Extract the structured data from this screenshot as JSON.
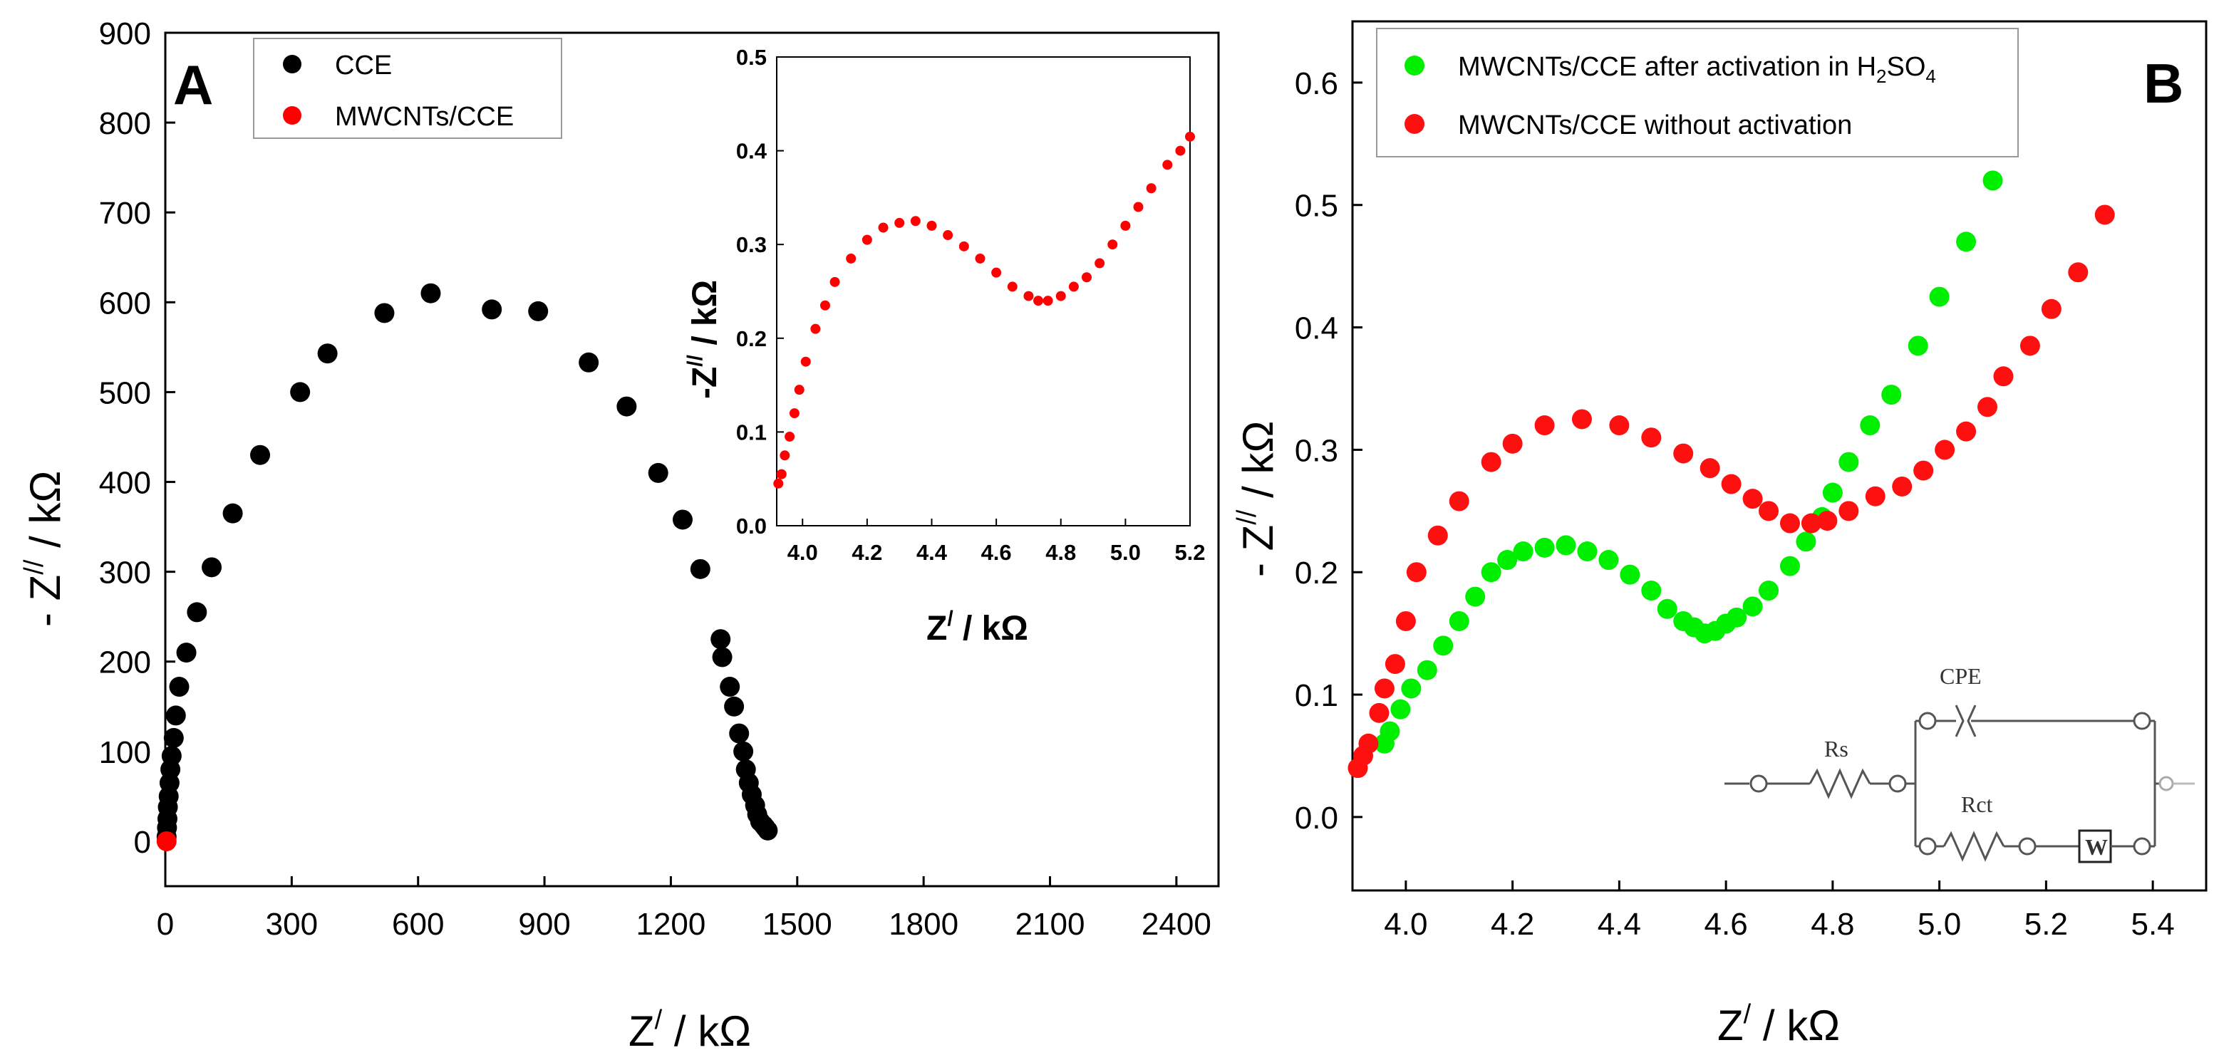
{
  "chart_data": [
    {
      "panel": "A",
      "type": "scatter",
      "xlabel": "Z/ / kΩ",
      "xlabel_base": "Z",
      "xlabel_sup": "/",
      "xlabel_rest": " / kΩ",
      "ylabel_prefix": "- Z",
      "ylabel_sup": "//",
      "ylabel_rest": " / kΩ",
      "ylabel": "- Z// / kΩ",
      "xlim": [
        0,
        2500
      ],
      "ylim": [
        -50,
        900
      ],
      "xticks": [
        0,
        300,
        600,
        900,
        1200,
        1500,
        1800,
        2100,
        2400
      ],
      "yticks": [
        0,
        100,
        200,
        300,
        400,
        500,
        600,
        700,
        800,
        900
      ],
      "legend": [
        "CCE",
        "MWCNTs/CCE"
      ],
      "legend_position": "top-center",
      "series": [
        {
          "name": "CCE",
          "color": "#000000",
          "points": [
            [
              3,
              5
            ],
            [
              4,
              15
            ],
            [
              5,
              25
            ],
            [
              6,
              38
            ],
            [
              8,
              50
            ],
            [
              10,
              65
            ],
            [
              12,
              80
            ],
            [
              15,
              95
            ],
            [
              20,
              115
            ],
            [
              25,
              140
            ],
            [
              33,
              172
            ],
            [
              50,
              210
            ],
            [
              75,
              255
            ],
            [
              110,
              305
            ],
            [
              160,
              365
            ],
            [
              225,
              430
            ],
            [
              320,
              500
            ],
            [
              385,
              543
            ],
            [
              520,
              588
            ],
            [
              630,
              610
            ],
            [
              775,
              592
            ],
            [
              885,
              590
            ],
            [
              1005,
              533
            ],
            [
              1095,
              484
            ],
            [
              1170,
              410
            ],
            [
              1228,
              358
            ],
            [
              1270,
              303
            ],
            [
              1318,
              225
            ],
            [
              1322,
              205
            ],
            [
              1340,
              172
            ],
            [
              1350,
              150
            ],
            [
              1362,
              120
            ],
            [
              1372,
              100
            ],
            [
              1378,
              80
            ],
            [
              1385,
              65
            ],
            [
              1392,
              52
            ],
            [
              1400,
              40
            ],
            [
              1405,
              30
            ],
            [
              1412,
              22
            ],
            [
              1420,
              18
            ],
            [
              1425,
              15
            ],
            [
              1430,
              12
            ]
          ]
        },
        {
          "name": "MWCNTs/CCE",
          "color": "#ff0000",
          "points": [
            [
              3,
              0
            ]
          ]
        }
      ],
      "inset": {
        "type": "scatter",
        "xlabel": "Z/ / kΩ",
        "ylabel": "-Z// / kΩ",
        "xlim": [
          3.92,
          5.2
        ],
        "ylim": [
          0.0,
          0.5
        ],
        "xticks": [
          4.0,
          4.2,
          4.4,
          4.6,
          4.8,
          5.0,
          5.2
        ],
        "xtick_labels": [
          "4.0",
          "4.2",
          "4.4",
          "4.6",
          "4.8",
          "5.0",
          "5.2"
        ],
        "yticks": [
          0.0,
          0.1,
          0.2,
          0.3,
          0.4,
          0.5
        ],
        "ytick_labels": [
          "0.0",
          "0.1",
          "0.2",
          "0.3",
          "0.4",
          "0.5"
        ],
        "series": [
          {
            "name": "MWCNTs/CCE",
            "color": "#ff0000",
            "points": [
              [
                3.925,
                0.045
              ],
              [
                3.935,
                0.055
              ],
              [
                3.945,
                0.075
              ],
              [
                3.96,
                0.095
              ],
              [
                3.975,
                0.12
              ],
              [
                3.99,
                0.145
              ],
              [
                4.01,
                0.175
              ],
              [
                4.04,
                0.21
              ],
              [
                4.07,
                0.235
              ],
              [
                4.1,
                0.26
              ],
              [
                4.15,
                0.285
              ],
              [
                4.2,
                0.305
              ],
              [
                4.25,
                0.318
              ],
              [
                4.3,
                0.323
              ],
              [
                4.35,
                0.325
              ],
              [
                4.4,
                0.32
              ],
              [
                4.45,
                0.31
              ],
              [
                4.5,
                0.298
              ],
              [
                4.55,
                0.285
              ],
              [
                4.6,
                0.27
              ],
              [
                4.65,
                0.255
              ],
              [
                4.7,
                0.245
              ],
              [
                4.73,
                0.24
              ],
              [
                4.76,
                0.24
              ],
              [
                4.8,
                0.245
              ],
              [
                4.84,
                0.255
              ],
              [
                4.88,
                0.265
              ],
              [
                4.92,
                0.28
              ],
              [
                4.96,
                0.3
              ],
              [
                5.0,
                0.32
              ],
              [
                5.04,
                0.34
              ],
              [
                5.08,
                0.36
              ],
              [
                5.13,
                0.385
              ],
              [
                5.17,
                0.4
              ],
              [
                5.2,
                0.415
              ]
            ]
          }
        ]
      }
    },
    {
      "panel": "B",
      "type": "scatter",
      "xlabel": "Z/ / kΩ",
      "xlabel_base": "Z",
      "xlabel_sup": "/",
      "xlabel_rest": " / kΩ",
      "ylabel_prefix": "- Z",
      "ylabel_sup": "//",
      "ylabel_rest": " / kΩ",
      "ylabel": "- Z// / kΩ",
      "xlim": [
        3.9,
        5.5
      ],
      "ylim": [
        -0.06,
        0.65
      ],
      "xticks": [
        4.0,
        4.2,
        4.4,
        4.6,
        4.8,
        5.0,
        5.2,
        5.4
      ],
      "xtick_labels": [
        "4.0",
        "4.2",
        "4.4",
        "4.6",
        "4.8",
        "5.0",
        "5.2",
        "5.4"
      ],
      "yticks": [
        0.0,
        0.1,
        0.2,
        0.3,
        0.4,
        0.5,
        0.6
      ],
      "ytick_labels": [
        "0.0",
        "0.1",
        "0.2",
        "0.3",
        "0.4",
        "0.5",
        "0.6"
      ],
      "legend": [
        "MWCNTs/CCE after activation in H2SO4",
        "MWCNTs/CCE without activation"
      ],
      "legend_entry_1_main": "MWCNTs/CCE after activation in H",
      "legend_entry_1_sub1": "2",
      "legend_entry_1_mid": "SO",
      "legend_entry_1_sub2": "4",
      "legend_position": "top-left",
      "series": [
        {
          "name": "MWCNTs/CCE after activation in H2SO4",
          "color": "#00ee00",
          "points": [
            [
              3.96,
              0.06
            ],
            [
              3.97,
              0.07
            ],
            [
              3.99,
              0.088
            ],
            [
              4.01,
              0.105
            ],
            [
              4.04,
              0.12
            ],
            [
              4.07,
              0.14
            ],
            [
              4.1,
              0.16
            ],
            [
              4.13,
              0.18
            ],
            [
              4.16,
              0.2
            ],
            [
              4.19,
              0.21
            ],
            [
              4.22,
              0.217
            ],
            [
              4.26,
              0.22
            ],
            [
              4.3,
              0.222
            ],
            [
              4.34,
              0.217
            ],
            [
              4.38,
              0.21
            ],
            [
              4.42,
              0.198
            ],
            [
              4.46,
              0.185
            ],
            [
              4.49,
              0.17
            ],
            [
              4.52,
              0.16
            ],
            [
              4.54,
              0.155
            ],
            [
              4.56,
              0.15
            ],
            [
              4.58,
              0.152
            ],
            [
              4.6,
              0.158
            ],
            [
              4.62,
              0.163
            ],
            [
              4.65,
              0.172
            ],
            [
              4.68,
              0.185
            ],
            [
              4.72,
              0.205
            ],
            [
              4.75,
              0.225
            ],
            [
              4.78,
              0.245
            ],
            [
              4.8,
              0.265
            ],
            [
              4.83,
              0.29
            ],
            [
              4.87,
              0.32
            ],
            [
              4.91,
              0.345
            ],
            [
              4.96,
              0.385
            ],
            [
              5.0,
              0.425
            ],
            [
              5.05,
              0.47
            ],
            [
              5.1,
              0.52
            ]
          ]
        },
        {
          "name": "MWCNTs/CCE without activation",
          "color": "#ff1010",
          "points": [
            [
              3.91,
              0.04
            ],
            [
              3.92,
              0.05
            ],
            [
              3.93,
              0.06
            ],
            [
              3.95,
              0.085
            ],
            [
              3.96,
              0.105
            ],
            [
              3.98,
              0.125
            ],
            [
              4.0,
              0.16
            ],
            [
              4.02,
              0.2
            ],
            [
              4.06,
              0.23
            ],
            [
              4.1,
              0.258
            ],
            [
              4.16,
              0.29
            ],
            [
              4.2,
              0.305
            ],
            [
              4.26,
              0.32
            ],
            [
              4.33,
              0.325
            ],
            [
              4.4,
              0.32
            ],
            [
              4.46,
              0.31
            ],
            [
              4.52,
              0.297
            ],
            [
              4.57,
              0.285
            ],
            [
              4.61,
              0.272
            ],
            [
              4.65,
              0.26
            ],
            [
              4.68,
              0.25
            ],
            [
              4.72,
              0.24
            ],
            [
              4.76,
              0.24
            ],
            [
              4.79,
              0.242
            ],
            [
              4.83,
              0.25
            ],
            [
              4.88,
              0.262
            ],
            [
              4.93,
              0.27
            ],
            [
              4.97,
              0.283
            ],
            [
              5.01,
              0.3
            ],
            [
              5.05,
              0.315
            ],
            [
              5.09,
              0.335
            ],
            [
              5.12,
              0.36
            ],
            [
              5.17,
              0.385
            ],
            [
              5.21,
              0.415
            ],
            [
              5.26,
              0.445
            ],
            [
              5.31,
              0.492
            ]
          ]
        }
      ],
      "circuit_labels": {
        "rs": "Rs",
        "cpe": "CPE",
        "rct": "Rct",
        "w": "W"
      }
    }
  ]
}
